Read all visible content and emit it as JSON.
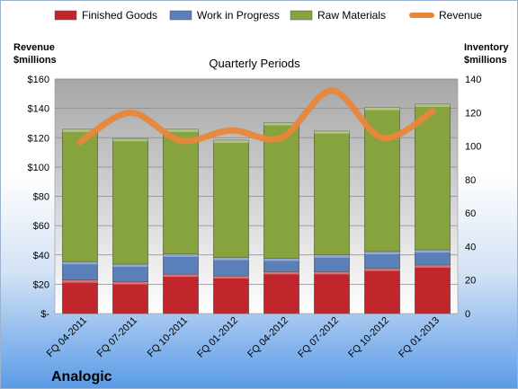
{
  "chart_data": {
    "type": "bar",
    "stacked": true,
    "title": "Quarterly Periods",
    "company": "Analogic",
    "y_left_label": [
      "Revenue",
      "$millions"
    ],
    "y_right_label": [
      "Inventory",
      "$millions"
    ],
    "y_left_ticks": [
      "$-",
      "$20",
      "$40",
      "$60",
      "$80",
      "$100",
      "$120",
      "$140",
      "$160"
    ],
    "y_right_ticks": [
      "0",
      "20",
      "40",
      "60",
      "80",
      "100",
      "120",
      "140"
    ],
    "ylim_left": [
      0,
      160
    ],
    "ylim_right": [
      0,
      140
    ],
    "categories": [
      "FQ 04-2011",
      "FQ 07-2011",
      "FQ 10-2011",
      "FQ 01-2012",
      "FQ 04-2012",
      "FQ 07-2012",
      "FQ 10-2012",
      "FQ 01-2013"
    ],
    "series": [
      {
        "name": "Finished Goods",
        "axis": "right",
        "color": "#c0262c",
        "values": [
          20,
          19,
          23.5,
          22.5,
          25,
          25,
          27,
          29
        ]
      },
      {
        "name": "Work in Progress",
        "axis": "right",
        "color": "#5b7fb8",
        "values": [
          11,
          10.5,
          12,
          11,
          8,
          10,
          10,
          9
        ]
      },
      {
        "name": "Raw Materials",
        "axis": "right",
        "color": "#86a33e",
        "values": [
          79,
          75,
          74.5,
          70,
          81,
          74,
          86,
          87
        ]
      },
      {
        "name": "Revenue",
        "axis": "left",
        "type": "line",
        "color": "#e8863a",
        "values": [
          117,
          137,
          118,
          125,
          120,
          152,
          120,
          138
        ]
      }
    ],
    "legend_position": "top",
    "grid": true
  }
}
